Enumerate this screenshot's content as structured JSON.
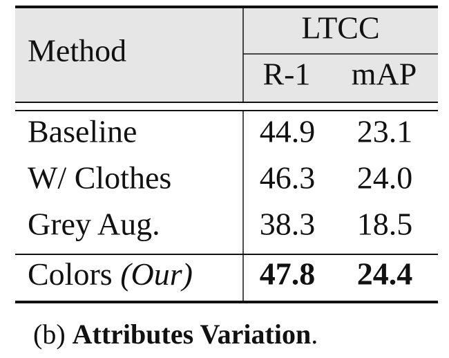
{
  "table": {
    "header": {
      "method": "Method",
      "group": "LTCC",
      "columns": [
        "R-1",
        "mAP"
      ]
    },
    "rows": [
      {
        "method": "Baseline",
        "values": [
          "44.9",
          "23.1"
        ]
      },
      {
        "method": "W/ Clothes",
        "values": [
          "46.3",
          "24.0"
        ]
      },
      {
        "method": "Grey Aug.",
        "values": [
          "38.3",
          "18.5"
        ]
      },
      {
        "method": "Colors",
        "note": "(Our)",
        "values": [
          "47.8",
          "24.4"
        ]
      }
    ]
  },
  "caption": {
    "label": "(b)",
    "title": "Attributes Variation",
    "end": "."
  }
}
